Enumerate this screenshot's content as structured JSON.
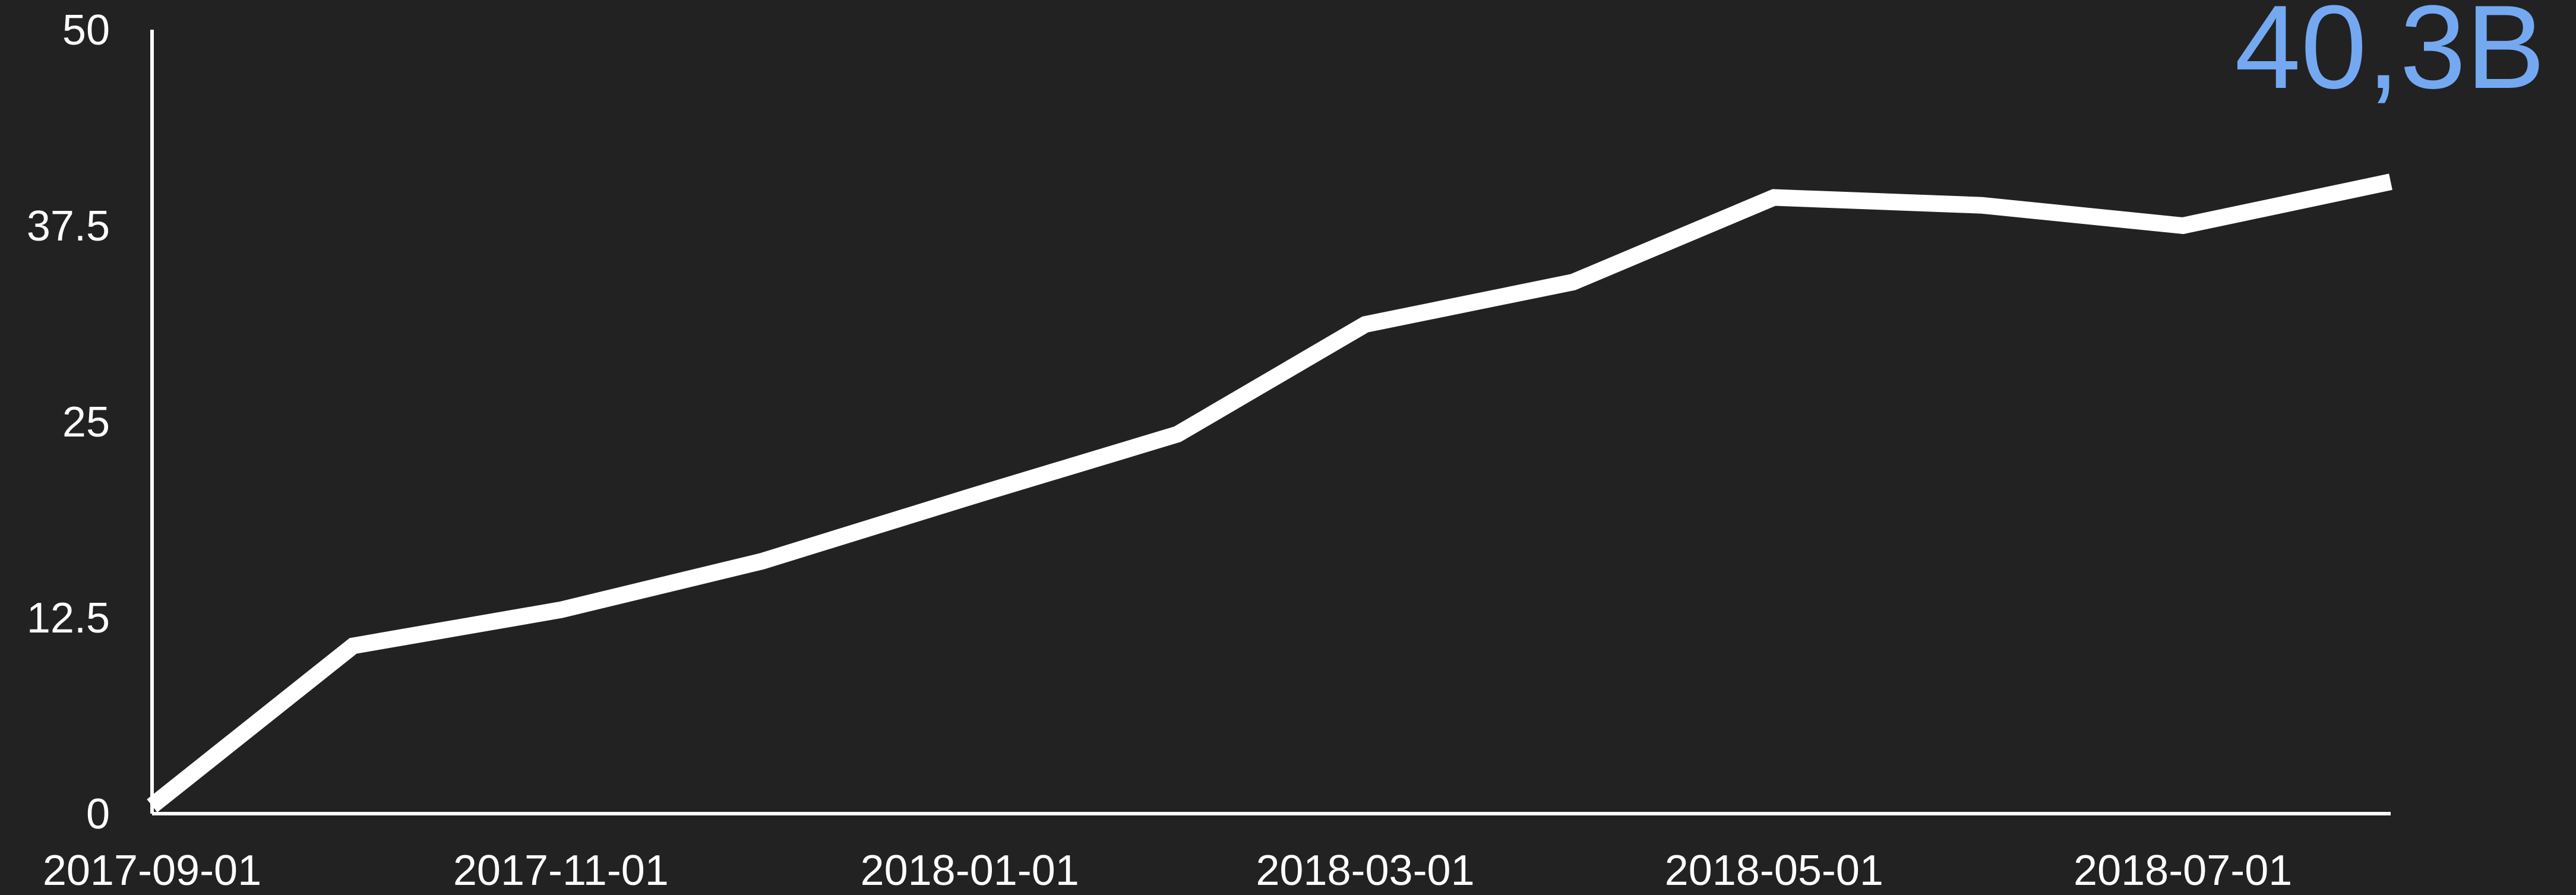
{
  "colors": {
    "background": "#222222",
    "axis": "#ffffff",
    "line": "#ffffff",
    "value_text": "#74a9f2"
  },
  "current_value": "40,3B",
  "chart_data": {
    "type": "line",
    "title": "",
    "xlabel": "",
    "ylabel": "",
    "ylim": [
      0,
      50
    ],
    "yticks": [
      "0",
      "12.5",
      "25",
      "37.5",
      "50"
    ],
    "xticks": [
      "2017-09-01",
      "2017-11-01",
      "2018-01-01",
      "2018-03-01",
      "2018-05-01",
      "2018-07-01"
    ],
    "grid": false,
    "legend": "none",
    "series": [
      {
        "x": [
          "2017-09-01",
          "2017-10-01",
          "2017-11-01",
          "2017-12-01",
          "2018-01-01",
          "2018-02-01",
          "2018-03-01",
          "2018-04-01",
          "2018-05-01",
          "2018-06-01",
          "2018-07-01",
          "2018-08-01"
        ],
        "values": [
          0.5,
          10.7,
          13.0,
          16.1,
          20.2,
          24.2,
          31.2,
          33.9,
          39.3,
          38.8,
          37.5,
          40.3
        ]
      }
    ]
  }
}
